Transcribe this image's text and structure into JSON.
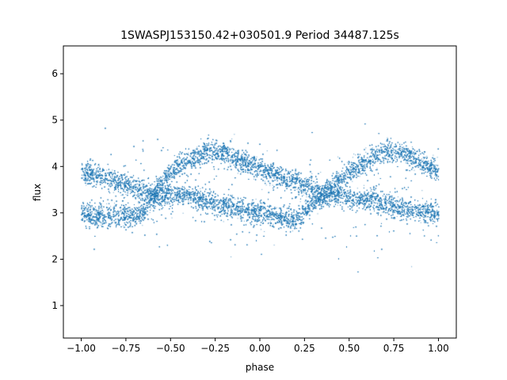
{
  "chart_data": {
    "type": "scatter",
    "title": "1SWASPJ153150.42+030501.9 Period 34487.125s",
    "xlabel": "phase",
    "ylabel": "flux",
    "xlim": [
      -1.1,
      1.1
    ],
    "ylim": [
      0.3,
      6.6
    ],
    "xticks": [
      -1.0,
      -0.75,
      -0.5,
      -0.25,
      0.0,
      0.25,
      0.5,
      0.75,
      1.0
    ],
    "xtick_labels": [
      "−1.00",
      "−0.75",
      "−0.50",
      "−0.25",
      "0.00",
      "0.25",
      "0.50",
      "0.75",
      "1.00"
    ],
    "yticks": [
      1,
      2,
      3,
      4,
      5,
      6
    ],
    "ytick_labels": [
      "1",
      "2",
      "3",
      "4",
      "5",
      "6"
    ],
    "grid": false,
    "marker_color": "#1f77b4",
    "series": [
      {
        "description_points": "folded light curve (two-period repetition)",
        "upper_branch": [
          [
            -1.0,
            3.9
          ],
          [
            -0.9,
            3.8
          ],
          [
            -0.75,
            3.6
          ],
          [
            -0.6,
            3.4
          ],
          [
            -0.5,
            3.9
          ],
          [
            -0.3,
            4.35
          ],
          [
            -0.2,
            4.3
          ],
          [
            0.0,
            3.95
          ],
          [
            0.25,
            3.6
          ],
          [
            0.35,
            3.4
          ],
          [
            0.5,
            3.9
          ],
          [
            0.7,
            4.35
          ],
          [
            0.8,
            4.3
          ],
          [
            1.0,
            3.9
          ]
        ],
        "lower_branch": [
          [
            -1.0,
            2.95
          ],
          [
            -0.8,
            2.95
          ],
          [
            -0.65,
            3.0
          ],
          [
            -0.6,
            3.35
          ],
          [
            -0.4,
            3.4
          ],
          [
            -0.2,
            3.15
          ],
          [
            0.0,
            3.0
          ],
          [
            0.2,
            2.85
          ],
          [
            0.35,
            3.4
          ],
          [
            0.6,
            3.3
          ],
          [
            0.8,
            3.1
          ],
          [
            1.0,
            3.0
          ]
        ]
      }
    ]
  }
}
